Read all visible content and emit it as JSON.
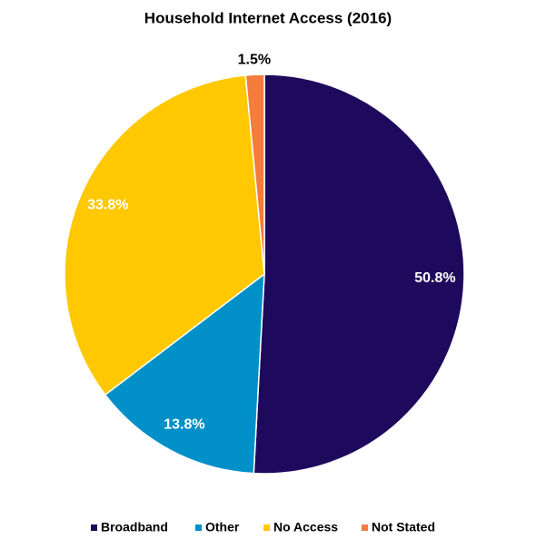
{
  "chart_data": {
    "type": "pie",
    "title": "Household Internet Access (2016)",
    "categories": [
      "Broadband",
      "Other",
      "No Access",
      "Not Stated"
    ],
    "values": [
      50.8,
      13.8,
      33.8,
      1.5
    ],
    "value_labels": [
      "50.8%",
      "13.8%",
      "33.8%",
      "1.5%"
    ],
    "colors": [
      "#1e0a5c",
      "#0090c8",
      "#ffc800",
      "#f47c3c"
    ]
  }
}
